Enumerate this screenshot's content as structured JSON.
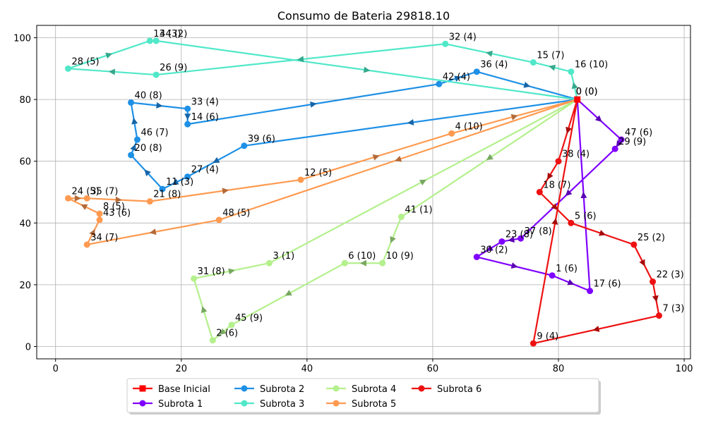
{
  "chart_data": {
    "type": "line",
    "title": "Consumo de Bateria 29818.10",
    "xlabel": "",
    "ylabel": "",
    "xlim": [
      -3,
      101
    ],
    "ylim": [
      -4,
      104
    ],
    "xticks": [
      0,
      20,
      40,
      60,
      80,
      100
    ],
    "yticks": [
      0,
      20,
      40,
      60,
      80,
      100
    ],
    "grid": true,
    "legend_position": "bottom-center",
    "legend_columns": 5,
    "base": {
      "name": "Base Inicial",
      "x": 83,
      "y": 80,
      "labels": [
        "0 (0)",
        "0 (0)"
      ],
      "color": "#ff0000"
    },
    "series": [
      {
        "name": "Subrota 1",
        "color": "#7f00ff",
        "arrow_color": "#5a00b4",
        "points": [
          {
            "x": 83,
            "y": 80,
            "label": ""
          },
          {
            "x": 90,
            "y": 67,
            "label": "47 (6)"
          },
          {
            "x": 89,
            "y": 64,
            "label": "29 (9)"
          },
          {
            "x": 74,
            "y": 35,
            "label": "37 (8)"
          },
          {
            "x": 71,
            "y": 34,
            "label": "23 (8)"
          },
          {
            "x": 67,
            "y": 29,
            "label": "30 (2)"
          },
          {
            "x": 79,
            "y": 23,
            "label": "1 (6)"
          },
          {
            "x": 85,
            "y": 18,
            "label": "17 (6)"
          },
          {
            "x": 83,
            "y": 80,
            "label": ""
          }
        ]
      },
      {
        "name": "Subrota 2",
        "color": "#1e90e6",
        "arrow_color": "#1565a8",
        "points": [
          {
            "x": 83,
            "y": 80,
            "label": ""
          },
          {
            "x": 30,
            "y": 65,
            "label": "39 (6)"
          },
          {
            "x": 21,
            "y": 55,
            "label": "27 (4)"
          },
          {
            "x": 17,
            "y": 51,
            "label": "11 (3)"
          },
          {
            "x": 12,
            "y": 62,
            "label": "20 (8)"
          },
          {
            "x": 13,
            "y": 67,
            "label": "46 (7)"
          },
          {
            "x": 12,
            "y": 79,
            "label": "40 (8)"
          },
          {
            "x": 21,
            "y": 77,
            "label": "33 (4)"
          },
          {
            "x": 21,
            "y": 72,
            "label": "14 (6)"
          },
          {
            "x": 61,
            "y": 85,
            "label": "42 (4)"
          },
          {
            "x": 67,
            "y": 89,
            "label": "36 (4)"
          },
          {
            "x": 83,
            "y": 80,
            "label": ""
          }
        ]
      },
      {
        "name": "Subrota 3",
        "color": "#50e8c8",
        "arrow_color": "#35a88c",
        "points": [
          {
            "x": 83,
            "y": 80,
            "label": ""
          },
          {
            "x": 82,
            "y": 89,
            "label": "16 (10)"
          },
          {
            "x": 76,
            "y": 92,
            "label": "15 (7)"
          },
          {
            "x": 62,
            "y": 98,
            "label": "32 (4)"
          },
          {
            "x": 16,
            "y": 88,
            "label": "26 (9)"
          },
          {
            "x": 2,
            "y": 90,
            "label": "28 (5)"
          },
          {
            "x": 15,
            "y": 99,
            "label": "13 (3)"
          },
          {
            "x": 16,
            "y": 99,
            "label": "44 (2)"
          },
          {
            "x": 83,
            "y": 80,
            "label": ""
          }
        ]
      },
      {
        "name": "Subrota 4",
        "color": "#b4f08c",
        "arrow_color": "#78a860",
        "points": [
          {
            "x": 83,
            "y": 80,
            "label": ""
          },
          {
            "x": 55,
            "y": 42,
            "label": "41 (1)"
          },
          {
            "x": 52,
            "y": 27,
            "label": "10 (9)"
          },
          {
            "x": 46,
            "y": 27,
            "label": "6 (10)"
          },
          {
            "x": 28,
            "y": 7,
            "label": "45 (9)"
          },
          {
            "x": 25,
            "y": 2,
            "label": "2 (6)"
          },
          {
            "x": 22,
            "y": 22,
            "label": "31 (8)"
          },
          {
            "x": 34,
            "y": 27,
            "label": "3 (1)"
          },
          {
            "x": 83,
            "y": 80,
            "label": ""
          }
        ]
      },
      {
        "name": "Subrota 5",
        "color": "#ff9a50",
        "arrow_color": "#b46a38",
        "points": [
          {
            "x": 83,
            "y": 80,
            "label": ""
          },
          {
            "x": 26,
            "y": 41,
            "label": "48 (5)"
          },
          {
            "x": 5,
            "y": 33,
            "label": "34 (7)"
          },
          {
            "x": 7,
            "y": 41,
            "label": "43 (6)"
          },
          {
            "x": 7,
            "y": 43,
            "label": "8 (5)"
          },
          {
            "x": 2,
            "y": 48,
            "label": "24 (5)"
          },
          {
            "x": 5,
            "y": 48,
            "label": "35 (7)"
          },
          {
            "x": 15,
            "y": 47,
            "label": "21 (8)"
          },
          {
            "x": 39,
            "y": 54,
            "label": "12 (5)"
          },
          {
            "x": 63,
            "y": 69,
            "label": "4 (10)"
          },
          {
            "x": 83,
            "y": 80,
            "label": ""
          }
        ]
      },
      {
        "name": "Subrota 6",
        "color": "#ee1111",
        "arrow_color": "#a80a0a",
        "points": [
          {
            "x": 83,
            "y": 80,
            "label": ""
          },
          {
            "x": 80,
            "y": 60,
            "label": "38 (4)"
          },
          {
            "x": 77,
            "y": 50,
            "label": "18 (7)"
          },
          {
            "x": 82,
            "y": 40,
            "label": "5 (6)"
          },
          {
            "x": 92,
            "y": 33,
            "label": "25 (2)"
          },
          {
            "x": 95,
            "y": 21,
            "label": "22 (3)"
          },
          {
            "x": 96,
            "y": 10,
            "label": "7 (3)"
          },
          {
            "x": 76,
            "y": 1,
            "label": "9 (4)"
          },
          {
            "x": 83,
            "y": 80,
            "label": ""
          }
        ]
      }
    ],
    "legend": [
      {
        "name": "Base Inicial",
        "marker": "square",
        "color": "#ff0000"
      },
      {
        "name": "Subrota 1",
        "marker": "circle",
        "color": "#7f00ff"
      },
      {
        "name": "Subrota 2",
        "marker": "circle",
        "color": "#1e90e6"
      },
      {
        "name": "Subrota 3",
        "marker": "circle",
        "color": "#50e8c8"
      },
      {
        "name": "Subrota 4",
        "marker": "circle",
        "color": "#b4f08c"
      },
      {
        "name": "Subrota 5",
        "marker": "circle",
        "color": "#ff9a50"
      },
      {
        "name": "Subrota 6",
        "marker": "circle",
        "color": "#ee1111"
      }
    ]
  }
}
